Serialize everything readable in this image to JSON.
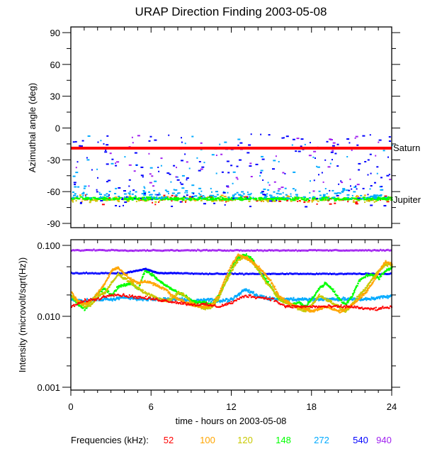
{
  "chart_data": [
    {
      "type": "scatter",
      "title": "URAP Direction Finding  2003-05-08",
      "ylabel": "Azimuthal angle (deg)",
      "xlabel": "",
      "xlim": [
        0,
        24
      ],
      "ylim": [
        -93,
        97
      ],
      "yticks": [
        90,
        60,
        30,
        0,
        -30,
        -60,
        -90
      ],
      "ytick_labels": [
        "90",
        "60",
        "30",
        "0",
        "-30",
        "-60",
        "-90"
      ],
      "annotations": [
        {
          "label": "Saturn",
          "y": -19,
          "color": "#ff0000"
        },
        {
          "label": "Jupiter",
          "y": -66,
          "color": "#00ff00"
        }
      ],
      "series": [
        {
          "name": "52",
          "color": "#ff0000",
          "description": "scattered near -66 deg",
          "center": -67,
          "spread": 6
        },
        {
          "name": "100",
          "color": "#ffa500",
          "description": "scattered near -66 deg",
          "center": -66,
          "spread": 5
        },
        {
          "name": "120",
          "color": "#c8c800",
          "description": "band near -66 deg",
          "center": -67,
          "spread": 3
        },
        {
          "name": "148",
          "color": "#00ff00",
          "description": "dense band near -66 deg (Jupiter)",
          "center": -66,
          "spread": 2
        },
        {
          "name": "272",
          "color": "#00aaff",
          "description": "clusters -70 to -55 deg, spikes to 0",
          "center": -62,
          "spread": 8
        },
        {
          "name": "540",
          "color": "#0000ff",
          "description": "scattered -75 to -5 deg",
          "center": -30,
          "spread": 25
        },
        {
          "name": "940",
          "color": "#a020f0",
          "description": "scattered -60 to -5 deg",
          "center": -20,
          "spread": 15
        }
      ],
      "reference_line": {
        "name": "Saturn",
        "y": -19,
        "color": "#ff0000"
      }
    },
    {
      "type": "scatter",
      "ylabel": "Intensity (microvolt/sqrt(Hz))",
      "xlabel": "time - hours on 2003-05-08",
      "xlim": [
        0,
        24
      ],
      "ylim": [
        0.001,
        0.11
      ],
      "yscale": "log",
      "xticks": [
        0,
        6,
        12,
        18,
        24
      ],
      "xtick_labels": [
        "0",
        "6",
        "12",
        "18",
        "24"
      ],
      "yticks": [
        0.1,
        0.01,
        0.001
      ],
      "ytick_labels": [
        "0.100",
        "0.010",
        "0.001"
      ],
      "legend": {
        "label": "Frequencies (kHz):",
        "position": "bottom",
        "entries": [
          {
            "name": "52",
            "color": "#ff0000"
          },
          {
            "name": "100",
            "color": "#ffa500"
          },
          {
            "name": "120",
            "color": "#c8c800"
          },
          {
            "name": "148",
            "color": "#00ff00"
          },
          {
            "name": "272",
            "color": "#00aaff"
          },
          {
            "name": "540",
            "color": "#0000ff"
          },
          {
            "name": "940",
            "color": "#a020f0"
          }
        ]
      },
      "series": [
        {
          "name": "940",
          "color": "#a020f0",
          "x": [
            0,
            2,
            4,
            6,
            8,
            10,
            12,
            14,
            16,
            18,
            20,
            22,
            24
          ],
          "y": [
            0.088,
            0.089,
            0.088,
            0.088,
            0.088,
            0.088,
            0.088,
            0.088,
            0.088,
            0.088,
            0.088,
            0.088,
            0.088
          ]
        },
        {
          "name": "540",
          "color": "#0000ff",
          "x": [
            0,
            2,
            4,
            5.5,
            6.5,
            8,
            10,
            12,
            14,
            16,
            18,
            20,
            22,
            24
          ],
          "y": [
            0.042,
            0.042,
            0.042,
            0.048,
            0.042,
            0.042,
            0.041,
            0.041,
            0.041,
            0.041,
            0.041,
            0.041,
            0.041,
            0.041
          ]
        },
        {
          "name": "272",
          "color": "#00aaff",
          "x": [
            0,
            1,
            2,
            3,
            4,
            5,
            6,
            7,
            8,
            9,
            10,
            11,
            12,
            13,
            14,
            15,
            16,
            17,
            18,
            19,
            20,
            21,
            22,
            23,
            24
          ],
          "y": [
            0.018,
            0.017,
            0.018,
            0.018,
            0.019,
            0.018,
            0.018,
            0.018,
            0.018,
            0.017,
            0.018,
            0.017,
            0.018,
            0.025,
            0.02,
            0.018,
            0.018,
            0.018,
            0.018,
            0.018,
            0.018,
            0.018,
            0.018,
            0.019,
            0.02
          ]
        },
        {
          "name": "148",
          "color": "#00ff00",
          "x": [
            0,
            0.5,
            1,
            1.5,
            2,
            2.5,
            3,
            3.5,
            4,
            4.5,
            5,
            5.5,
            6,
            6.5,
            7,
            7.5,
            8,
            8.5,
            9,
            9.5,
            10,
            10.5,
            11,
            11.5,
            12,
            12.5,
            13,
            13.5,
            14,
            14.5,
            15,
            15.5,
            16,
            16.5,
            17,
            17.5,
            18,
            18.5,
            19,
            19.5,
            20,
            20.5,
            21,
            21.5,
            22,
            22.5,
            23,
            23.5,
            24
          ],
          "y": [
            0.02,
            0.015,
            0.013,
            0.017,
            0.022,
            0.025,
            0.02,
            0.027,
            0.028,
            0.03,
            0.025,
            0.045,
            0.04,
            0.033,
            0.028,
            0.025,
            0.022,
            0.02,
            0.017,
            0.016,
            0.016,
            0.015,
            0.02,
            0.03,
            0.05,
            0.07,
            0.075,
            0.065,
            0.045,
            0.035,
            0.025,
            0.018,
            0.016,
            0.015,
            0.016,
            0.014,
            0.018,
            0.025,
            0.03,
            0.025,
            0.018,
            0.015,
            0.02,
            0.032,
            0.038,
            0.04,
            0.035,
            0.045,
            0.05
          ]
        },
        {
          "name": "120",
          "color": "#c8c800",
          "x": [
            0,
            0.5,
            1,
            1.5,
            2,
            2.5,
            3,
            3.5,
            4,
            4.5,
            5,
            5.5,
            6,
            6.5,
            7,
            7.5,
            8,
            8.5,
            9,
            9.5,
            10,
            10.5,
            11,
            11.5,
            12,
            12.5,
            13,
            13.5,
            14,
            14.5,
            15,
            15.5,
            16,
            16.5,
            17,
            17.5,
            18,
            18.5,
            19,
            19.5,
            20,
            20.5,
            21,
            21.5,
            22,
            22.5,
            23,
            23.5,
            24
          ],
          "y": [
            0.02,
            0.016,
            0.014,
            0.015,
            0.02,
            0.022,
            0.03,
            0.04,
            0.035,
            0.03,
            0.025,
            0.022,
            0.02,
            0.018,
            0.017,
            0.018,
            0.022,
            0.02,
            0.016,
            0.014,
            0.013,
            0.014,
            0.018,
            0.03,
            0.045,
            0.065,
            0.07,
            0.06,
            0.045,
            0.032,
            0.025,
            0.018,
            0.016,
            0.015,
            0.013,
            0.012,
            0.015,
            0.02,
            0.018,
            0.016,
            0.014,
            0.012,
            0.015,
            0.02,
            0.025,
            0.035,
            0.045,
            0.055,
            0.055
          ]
        },
        {
          "name": "100",
          "color": "#ffa500",
          "x": [
            0,
            0.5,
            1,
            1.5,
            2,
            2.5,
            3,
            3.5,
            4,
            4.5,
            5,
            5.5,
            6,
            6.5,
            7,
            7.5,
            8,
            8.5,
            9,
            9.5,
            10,
            10.5,
            11,
            11.5,
            12,
            12.5,
            13,
            13.5,
            14,
            14.5,
            15,
            15.5,
            16,
            16.5,
            17,
            17.5,
            18,
            18.5,
            19,
            19.5,
            20,
            20.5,
            21,
            21.5,
            22,
            22.5,
            23,
            23.5,
            24
          ],
          "y": [
            0.022,
            0.017,
            0.015,
            0.017,
            0.022,
            0.03,
            0.045,
            0.05,
            0.04,
            0.033,
            0.03,
            0.032,
            0.03,
            0.027,
            0.025,
            0.02,
            0.018,
            0.016,
            0.015,
            0.014,
            0.014,
            0.015,
            0.02,
            0.035,
            0.055,
            0.075,
            0.07,
            0.06,
            0.05,
            0.04,
            0.03,
            0.02,
            0.017,
            0.015,
            0.014,
            0.013,
            0.012,
            0.013,
            0.014,
            0.013,
            0.012,
            0.013,
            0.015,
            0.018,
            0.022,
            0.03,
            0.045,
            0.06,
            0.055
          ]
        },
        {
          "name": "52",
          "color": "#ff0000",
          "x": [
            0,
            1,
            2,
            3,
            4,
            5,
            6,
            7,
            8,
            9,
            10,
            11,
            12,
            13,
            14,
            15,
            16,
            17,
            18,
            19,
            20,
            21,
            22,
            23,
            24
          ],
          "y": [
            0.014,
            0.017,
            0.018,
            0.021,
            0.02,
            0.019,
            0.018,
            0.017,
            0.016,
            0.015,
            0.015,
            0.014,
            0.016,
            0.02,
            0.019,
            0.018,
            0.014,
            0.014,
            0.014,
            0.014,
            0.014,
            0.014,
            0.013,
            0.013,
            0.014
          ]
        }
      ]
    }
  ]
}
